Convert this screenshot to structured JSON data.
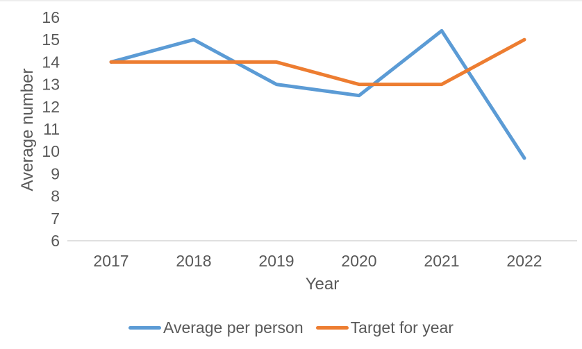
{
  "chart_data": {
    "type": "line",
    "title": "",
    "xlabel": "Year",
    "ylabel": "Average number",
    "x": [
      "2017",
      "2018",
      "2019",
      "2020",
      "2021",
      "2022"
    ],
    "yticks": [
      "6",
      "7",
      "8",
      "9",
      "10",
      "11",
      "12",
      "13",
      "14",
      "15",
      "16"
    ],
    "ylim": [
      6,
      16
    ],
    "grid": "baseline-only",
    "legend_position": "bottom-center",
    "axis_line_color": "#d6d6d6",
    "text_color": "#595959",
    "series": [
      {
        "name": "Average per person",
        "color": "#5B9BD5",
        "values": [
          14,
          15,
          13,
          12.5,
          15.4,
          9.7
        ]
      },
      {
        "name": "Target for year",
        "color": "#ED7D31",
        "values": [
          14,
          14,
          14,
          13,
          13,
          15
        ]
      }
    ]
  }
}
